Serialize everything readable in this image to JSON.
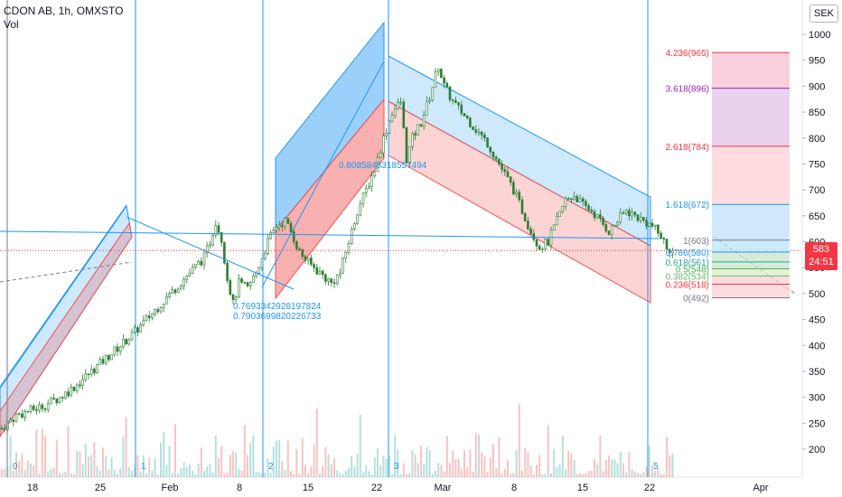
{
  "header": {
    "symbol_line": "CDON AB, 1h, OMXSTO",
    "volume_label": "Vol"
  },
  "currency_button": "SEK",
  "price_badge": {
    "price": "583",
    "countdown": "24:51"
  },
  "colors": {
    "up": "#26a69a",
    "down": "#ef5350",
    "candle": "#2e7d32",
    "channel_blue": "#2196f3",
    "channel_red": "#ef5350",
    "price_line": "#f23645"
  },
  "chart_data": {
    "type": "candlestick",
    "title": "CDON AB, 1h, OMXSTO",
    "y_axis": {
      "ticks": [
        200,
        250,
        300,
        350,
        400,
        450,
        500,
        550,
        600,
        650,
        700,
        750,
        800,
        850,
        900,
        950,
        1000
      ],
      "ylim": [
        155,
        1030
      ]
    },
    "x_axis": {
      "tick_labels": [
        "18",
        "25",
        "Feb",
        "8",
        "15",
        "22",
        "Mar",
        "8",
        "15",
        "22",
        "Apr"
      ]
    },
    "current_price": 583,
    "price_path": [
      [
        0,
        240
      ],
      [
        5,
        265
      ],
      [
        10,
        275
      ],
      [
        15,
        285
      ],
      [
        20,
        300
      ],
      [
        25,
        320
      ],
      [
        30,
        345
      ],
      [
        35,
        370
      ],
      [
        40,
        395
      ],
      [
        45,
        420
      ],
      [
        50,
        450
      ],
      [
        55,
        480
      ],
      [
        60,
        510
      ],
      [
        65,
        540
      ],
      [
        70,
        570
      ],
      [
        72,
        600
      ],
      [
        74,
        640
      ],
      [
        76,
        605
      ],
      [
        78,
        530
      ],
      [
        80,
        480
      ],
      [
        82,
        520
      ],
      [
        85,
        510
      ],
      [
        88,
        540
      ],
      [
        92,
        600
      ],
      [
        95,
        630
      ],
      [
        98,
        640
      ],
      [
        100,
        620
      ],
      [
        103,
        580
      ],
      [
        106,
        560
      ],
      [
        110,
        540
      ],
      [
        114,
        520
      ],
      [
        117,
        540
      ],
      [
        120,
        600
      ],
      [
        123,
        660
      ],
      [
        126,
        700
      ],
      [
        129,
        740
      ],
      [
        132,
        800
      ],
      [
        135,
        850
      ],
      [
        138,
        870
      ],
      [
        140,
        760
      ],
      [
        142,
        800
      ],
      [
        145,
        830
      ],
      [
        148,
        880
      ],
      [
        151,
        940
      ],
      [
        153,
        900
      ],
      [
        156,
        870
      ],
      [
        159,
        850
      ],
      [
        162,
        830
      ],
      [
        165,
        810
      ],
      [
        168,
        790
      ],
      [
        171,
        760
      ],
      [
        174,
        730
      ],
      [
        177,
        700
      ],
      [
        180,
        660
      ],
      [
        183,
        620
      ],
      [
        186,
        590
      ],
      [
        189,
        600
      ],
      [
        192,
        640
      ],
      [
        195,
        680
      ],
      [
        198,
        690
      ],
      [
        201,
        670
      ],
      [
        204,
        660
      ],
      [
        207,
        640
      ],
      [
        210,
        620
      ],
      [
        213,
        640
      ],
      [
        216,
        660
      ],
      [
        219,
        650
      ],
      [
        222,
        640
      ],
      [
        225,
        630
      ],
      [
        228,
        610
      ],
      [
        230,
        590
      ],
      [
        232,
        583
      ]
    ],
    "fib_extension": {
      "levels": [
        {
          "ratio": "4.236",
          "price": 965,
          "label": "4.236(965)",
          "color": "#f23645"
        },
        {
          "ratio": "3.618",
          "price": 896,
          "label": "3.618(896)",
          "color": "#9c27b0"
        },
        {
          "ratio": "2.618",
          "price": 784,
          "label": "2.618(784)",
          "color": "#f23645"
        },
        {
          "ratio": "1.618",
          "price": 672,
          "label": "1.618(672)",
          "color": "#2196f3"
        },
        {
          "ratio": "1",
          "price": 603,
          "label": "1(603)",
          "color": "#787b86"
        },
        {
          "ratio": "0.786",
          "price": 580,
          "label": "0.786(580)",
          "color": "#2196f3"
        },
        {
          "ratio": "0.618",
          "price": 561,
          "label": "0.618(561)",
          "color": "#26a69a"
        },
        {
          "ratio": "0.5",
          "price": 548,
          "label": "0.5(548)",
          "color": "#4caf50"
        },
        {
          "ratio": "0.382",
          "price": 534,
          "label": "0.382(534)",
          "color": "#66bb6a"
        },
        {
          "ratio": "0.236",
          "price": 518,
          "label": "0.236(518)",
          "color": "#f23645"
        },
        {
          "ratio": "0",
          "price": 492,
          "label": "0(492)",
          "color": "#787b86"
        }
      ]
    },
    "annotations": [
      {
        "text": "0.7693342928197824"
      },
      {
        "text": "0.7903699820226733"
      },
      {
        "text": "0.8085848318557494"
      }
    ],
    "wave_markers": [
      "0",
      "1",
      "2",
      "3",
      "5"
    ]
  }
}
